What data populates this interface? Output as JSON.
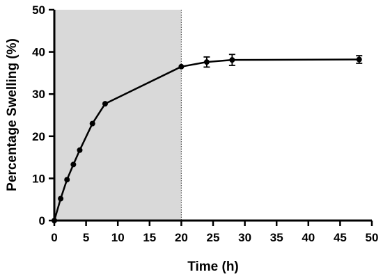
{
  "chart_data": {
    "type": "line",
    "title": "",
    "xlabel": "Time (h)",
    "ylabel": "Percentage Swelling (%)",
    "xlim": [
      0,
      50
    ],
    "ylim": [
      0,
      50
    ],
    "x_ticks": [
      0,
      5,
      10,
      15,
      20,
      25,
      30,
      35,
      40,
      45,
      50
    ],
    "y_ticks": [
      0,
      10,
      20,
      30,
      40,
      50
    ],
    "grid": false,
    "legend": "none",
    "shaded_region": {
      "x_start": 0,
      "x_end": 20,
      "color": "#d9d9d9",
      "boundary_style": "dotted"
    },
    "series": [
      {
        "color": "#000000",
        "marker": "circle",
        "x": [
          0,
          1,
          2,
          3,
          4,
          6,
          8,
          20,
          24,
          28,
          48
        ],
        "y": [
          0,
          5.2,
          9.7,
          13.3,
          16.7,
          23.0,
          27.7,
          36.5,
          37.6,
          38.1,
          38.2
        ],
        "error": [
          0,
          0,
          0,
          0,
          0,
          0,
          0,
          0,
          1.2,
          1.3,
          0.9
        ]
      }
    ]
  }
}
